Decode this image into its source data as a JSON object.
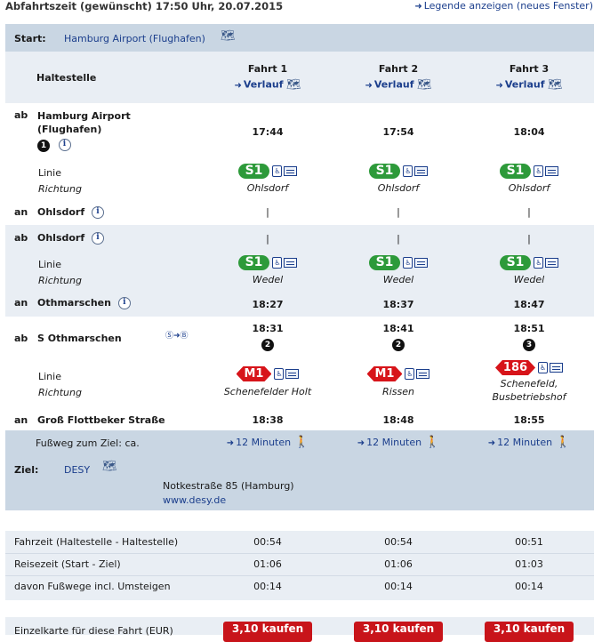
{
  "header": {
    "title": "Abfahrtszeit (gewünscht) 17:50 Uhr, 20.07.2015",
    "legend_link": "Legende anzeigen (neues Fenster)"
  },
  "start": {
    "label": "Start:",
    "value": "Hamburg Airport (Flughafen)"
  },
  "table_header": {
    "stop_col": "Haltestelle",
    "trips": [
      {
        "name": "Fahrt 1",
        "route_link": "Verlauf"
      },
      {
        "name": "Fahrt 2",
        "route_link": "Verlauf"
      },
      {
        "name": "Fahrt 3",
        "route_link": "Verlauf"
      }
    ]
  },
  "legs": [
    {
      "dep_station": "Hamburg Airport (Flughafen)",
      "dep_station_line1": "Hamburg Airport",
      "dep_station_line2": "(Flughafen)",
      "dep_platform_badge": "1",
      "dep_times": [
        "17:44",
        "17:54",
        "18:04"
      ],
      "line_label": "Linie",
      "direction_label": "Richtung",
      "lines": [
        "S1",
        "S1",
        "S1"
      ],
      "directions": [
        "Ohlsdorf",
        "Ohlsdorf",
        "Ohlsdorf"
      ],
      "arr_station": "Ohlsdorf",
      "arr_times": [
        "|",
        "|",
        "|"
      ]
    },
    {
      "dep_station": "Ohlsdorf",
      "dep_times": [
        "|",
        "|",
        "|"
      ],
      "line_label": "Linie",
      "direction_label": "Richtung",
      "lines": [
        "S1",
        "S1",
        "S1"
      ],
      "directions": [
        "Wedel",
        "Wedel",
        "Wedel"
      ],
      "arr_station": "Othmarschen",
      "arr_times": [
        "18:27",
        "18:37",
        "18:47"
      ]
    },
    {
      "dep_station": "S Othmarschen",
      "dep_times": [
        "18:31",
        "18:41",
        "18:51"
      ],
      "dep_badges": [
        "2",
        "2",
        "3"
      ],
      "line_label": "Linie",
      "direction_label": "Richtung",
      "lines": [
        "M1",
        "M1",
        "186"
      ],
      "directions": [
        "Schenefelder Holt",
        "Rissen",
        "Schenefeld,"
      ],
      "direction_extra": [
        "",
        "",
        "Busbetriebshof"
      ],
      "arr_station": "Groß Flottbeker Straße",
      "arr_times": [
        "18:38",
        "18:48",
        "18:55"
      ]
    }
  ],
  "labels": {
    "ab": "ab",
    "an": "an"
  },
  "walk": {
    "label": "Fußweg zum Ziel: ca.",
    "durations": [
      "12 Minuten",
      "12 Minuten",
      "12 Minuten"
    ]
  },
  "destination": {
    "label": "Ziel:",
    "value": "DESY",
    "address": "Notkestraße 85 (Hamburg)",
    "url": "www.desy.de"
  },
  "summary": [
    {
      "label": "Fahrzeit (Haltestelle - Haltestelle)",
      "values": [
        "00:54",
        "00:54",
        "00:51"
      ]
    },
    {
      "label": "Reisezeit (Start - Ziel)",
      "values": [
        "01:06",
        "01:06",
        "01:03"
      ]
    },
    {
      "label": "davon Fußwege incl. Umsteigen",
      "values": [
        "00:14",
        "00:14",
        "00:14"
      ]
    }
  ],
  "fare": {
    "label": "Einzelkarte für diese Fahrt (EUR)",
    "buttons": [
      "3,10 kaufen",
      "3,10 kaufen",
      "3,10 kaufen"
    ]
  },
  "colors": {
    "s1": "#2d9a3a",
    "m1": "#d7141a",
    "buy": "#c8141a",
    "band_dark": "#c9d6e3",
    "band_light": "#e9eef4",
    "link": "#1b3e8c"
  }
}
